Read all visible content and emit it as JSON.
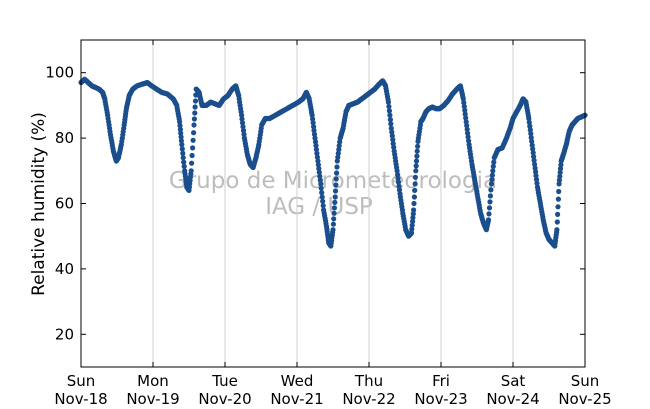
{
  "chart_data": {
    "type": "scatter",
    "ylabel": "Relative humidity (%)",
    "xlabel": "",
    "xlim": [
      0,
      7
    ],
    "ylim": [
      10,
      110
    ],
    "yticks": [
      20,
      40,
      60,
      80,
      100
    ],
    "xticks": [
      {
        "x": 0,
        "day": "Sun",
        "date": "Nov-18"
      },
      {
        "x": 1,
        "day": "Mon",
        "date": "Nov-19"
      },
      {
        "x": 2,
        "day": "Tue",
        "date": "Nov-20"
      },
      {
        "x": 3,
        "day": "Wed",
        "date": "Nov-21"
      },
      {
        "x": 4,
        "day": "Thu",
        "date": "Nov-22"
      },
      {
        "x": 5,
        "day": "Fri",
        "date": "Nov-23"
      },
      {
        "x": 6,
        "day": "Sat",
        "date": "Nov-24"
      },
      {
        "x": 7,
        "day": "Sun",
        "date": "Nov-25"
      }
    ],
    "grid": "vertical",
    "watermark": [
      "Grupo de Micrometeorologia",
      "IAG / USP"
    ],
    "series": [
      {
        "color": "#1a4e8c",
        "points": [
          [
            0.0,
            97
          ],
          [
            0.05,
            98
          ],
          [
            0.1,
            97
          ],
          [
            0.15,
            96
          ],
          [
            0.2,
            95.5
          ],
          [
            0.25,
            95
          ],
          [
            0.3,
            94
          ],
          [
            0.33,
            92
          ],
          [
            0.37,
            87
          ],
          [
            0.41,
            81
          ],
          [
            0.45,
            76
          ],
          [
            0.49,
            73
          ],
          [
            0.52,
            74
          ],
          [
            0.56,
            78
          ],
          [
            0.6,
            84
          ],
          [
            0.63,
            89
          ],
          [
            0.67,
            93
          ],
          [
            0.72,
            95
          ],
          [
            0.78,
            96
          ],
          [
            0.85,
            96.5
          ],
          [
            0.92,
            97
          ],
          [
            0.98,
            96
          ],
          [
            1.05,
            95
          ],
          [
            1.12,
            94
          ],
          [
            1.2,
            93.5
          ],
          [
            1.28,
            92
          ],
          [
            1.33,
            90
          ],
          [
            1.37,
            85
          ],
          [
            1.4,
            78
          ],
          [
            1.44,
            70
          ],
          [
            1.47,
            65
          ],
          [
            1.5,
            64
          ],
          [
            1.53,
            70
          ],
          [
            1.57,
            84
          ],
          [
            1.6,
            95
          ],
          [
            1.64,
            94
          ],
          [
            1.68,
            90
          ],
          [
            1.74,
            90
          ],
          [
            1.8,
            91
          ],
          [
            1.86,
            90.5
          ],
          [
            1.92,
            90
          ],
          [
            1.98,
            92
          ],
          [
            2.04,
            93
          ],
          [
            2.1,
            95
          ],
          [
            2.15,
            96
          ],
          [
            2.19,
            93
          ],
          [
            2.23,
            87
          ],
          [
            2.27,
            80
          ],
          [
            2.31,
            75
          ],
          [
            2.35,
            72
          ],
          [
            2.39,
            71
          ],
          [
            2.43,
            74
          ],
          [
            2.47,
            78
          ],
          [
            2.51,
            84
          ],
          [
            2.56,
            86
          ],
          [
            2.62,
            86
          ],
          [
            2.7,
            87
          ],
          [
            2.78,
            88
          ],
          [
            2.86,
            89
          ],
          [
            2.94,
            90
          ],
          [
            3.02,
            91
          ],
          [
            3.08,
            92
          ],
          [
            3.13,
            94
          ],
          [
            3.17,
            92
          ],
          [
            3.21,
            87
          ],
          [
            3.25,
            80
          ],
          [
            3.29,
            73
          ],
          [
            3.33,
            66
          ],
          [
            3.37,
            58
          ],
          [
            3.41,
            53
          ],
          [
            3.44,
            48
          ],
          [
            3.47,
            47
          ],
          [
            3.5,
            52
          ],
          [
            3.53,
            62
          ],
          [
            3.56,
            73
          ],
          [
            3.6,
            80
          ],
          [
            3.64,
            83
          ],
          [
            3.68,
            88
          ],
          [
            3.72,
            90
          ],
          [
            3.78,
            90.5
          ],
          [
            3.84,
            91
          ],
          [
            3.9,
            92
          ],
          [
            3.96,
            93
          ],
          [
            4.02,
            94
          ],
          [
            4.08,
            95
          ],
          [
            4.14,
            96.5
          ],
          [
            4.19,
            97.5
          ],
          [
            4.23,
            96
          ],
          [
            4.27,
            91
          ],
          [
            4.31,
            83
          ],
          [
            4.35,
            76
          ],
          [
            4.39,
            70
          ],
          [
            4.43,
            63
          ],
          [
            4.47,
            57
          ],
          [
            4.51,
            52
          ],
          [
            4.55,
            50
          ],
          [
            4.59,
            51
          ],
          [
            4.62,
            58
          ],
          [
            4.65,
            70
          ],
          [
            4.68,
            79
          ],
          [
            4.72,
            85
          ],
          [
            4.75,
            86
          ],
          [
            4.79,
            88
          ],
          [
            4.83,
            89
          ],
          [
            4.88,
            89.5
          ],
          [
            4.93,
            89
          ],
          [
            4.98,
            89
          ],
          [
            5.04,
            90
          ],
          [
            5.1,
            91.5
          ],
          [
            5.16,
            93.5
          ],
          [
            5.22,
            95
          ],
          [
            5.27,
            96
          ],
          [
            5.31,
            92
          ],
          [
            5.35,
            85
          ],
          [
            5.39,
            78
          ],
          [
            5.43,
            72
          ],
          [
            5.47,
            67
          ],
          [
            5.51,
            62
          ],
          [
            5.55,
            57
          ],
          [
            5.59,
            54
          ],
          [
            5.63,
            52
          ],
          [
            5.66,
            55
          ],
          [
            5.7,
            66
          ],
          [
            5.74,
            74
          ],
          [
            5.79,
            76.5
          ],
          [
            5.85,
            77
          ],
          [
            5.91,
            80
          ],
          [
            5.96,
            83
          ],
          [
            6.0,
            86
          ],
          [
            6.05,
            88
          ],
          [
            6.1,
            90
          ],
          [
            6.14,
            92
          ],
          [
            6.18,
            91
          ],
          [
            6.22,
            86
          ],
          [
            6.26,
            79
          ],
          [
            6.3,
            72
          ],
          [
            6.34,
            65
          ],
          [
            6.38,
            60
          ],
          [
            6.42,
            55
          ],
          [
            6.46,
            51
          ],
          [
            6.5,
            49
          ],
          [
            6.54,
            48
          ],
          [
            6.58,
            47
          ],
          [
            6.61,
            52
          ],
          [
            6.64,
            66
          ],
          [
            6.67,
            73
          ],
          [
            6.7,
            75
          ],
          [
            6.74,
            78
          ],
          [
            6.78,
            82
          ],
          [
            6.82,
            84
          ],
          [
            6.86,
            85
          ],
          [
            6.9,
            86
          ],
          [
            6.95,
            86.5
          ],
          [
            7.0,
            87
          ]
        ]
      }
    ]
  }
}
